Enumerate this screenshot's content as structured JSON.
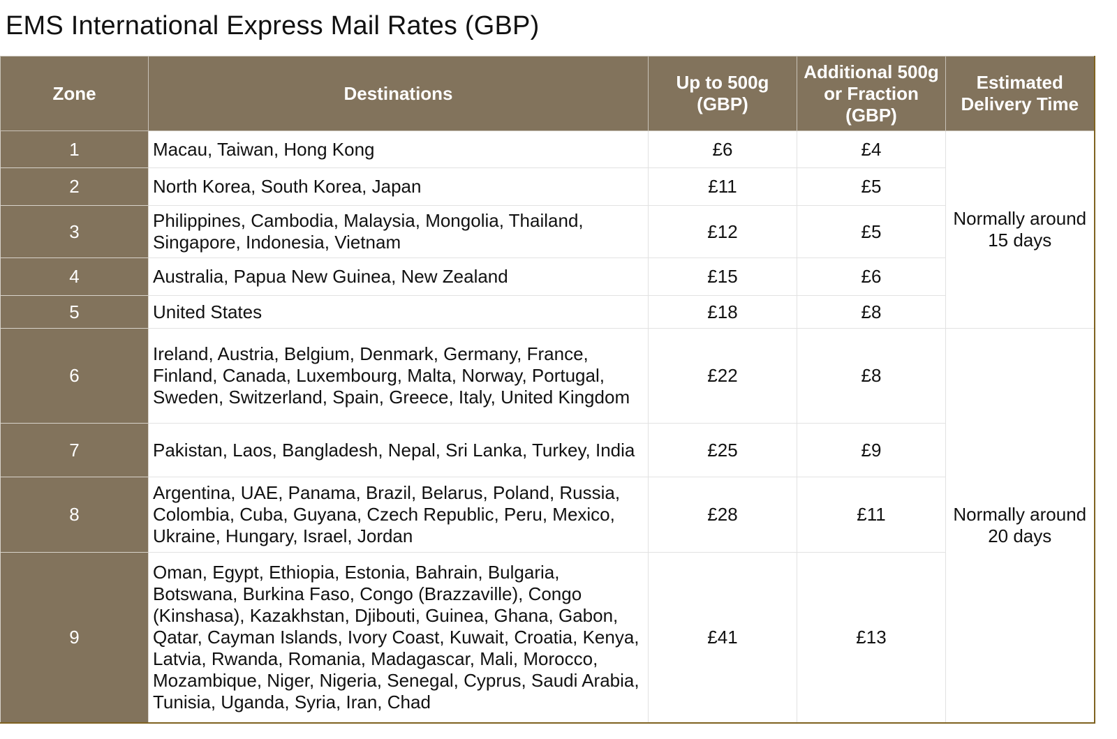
{
  "title": "EMS International Express Mail Rates (GBP)",
  "headers": {
    "zone": "Zone",
    "destinations": "Destinations",
    "up_to_500g": "Up to 500g (GBP)",
    "additional": "Additional 500g or Fraction (GBP)",
    "delivery": "Estimated Delivery Time"
  },
  "rows": [
    {
      "zone": "1",
      "destinations": "Macau, Taiwan, Hong Kong",
      "first": "£6",
      "additional": "£4"
    },
    {
      "zone": "2",
      "destinations": "North Korea, South Korea, Japan",
      "first": "£11",
      "additional": "£5"
    },
    {
      "zone": "3",
      "destinations": "Philippines, Cambodia, Malaysia, Mongolia, Thailand, Singapore, Indonesia, Vietnam",
      "first": "£12",
      "additional": "£5"
    },
    {
      "zone": "4",
      "destinations": "Australia, Papua New Guinea, New Zealand",
      "first": "£15",
      "additional": "£6"
    },
    {
      "zone": "5",
      "destinations": "United States",
      "first": "£18",
      "additional": "£8"
    },
    {
      "zone": "6",
      "destinations": "Ireland, Austria, Belgium, Denmark, Germany, France, Finland, Canada, Luxembourg, Malta, Norway, Portugal, Sweden, Switzerland, Spain, Greece, Italy, United Kingdom",
      "first": "£22",
      "additional": "£8"
    },
    {
      "zone": "7",
      "destinations": "Pakistan, Laos, Bangladesh, Nepal, Sri Lanka, Turkey, India",
      "first": "£25",
      "additional": "£9"
    },
    {
      "zone": "8",
      "destinations": "Argentina, UAE, Panama, Brazil, Belarus, Poland, Russia, Colombia, Cuba, Guyana, Czech Republic, Peru, Mexico, Ukraine, Hungary, Israel, Jordan",
      "first": "£28",
      "additional": "£11"
    },
    {
      "zone": "9",
      "destinations": "Oman, Egypt, Ethiopia, Estonia, Bahrain, Bulgaria, Botswana, Burkina Faso, Congo (Brazzaville), Congo (Kinshasa), Kazakhstan, Djibouti, Guinea, Ghana, Gabon, Qatar, Cayman Islands, Ivory Coast, Kuwait, Croatia, Kenya, Latvia, Rwanda, Romania, Madagascar, Mali, Morocco, Mozambique, Niger, Nigeria, Senegal, Cyprus, Saudi Arabia, Tunisia, Uganda, Syria, Iran, Chad",
      "first": "£41",
      "additional": "£13"
    }
  ],
  "delivery_groups": [
    "Normally around 15 days",
    "Normally around 20 days"
  ]
}
